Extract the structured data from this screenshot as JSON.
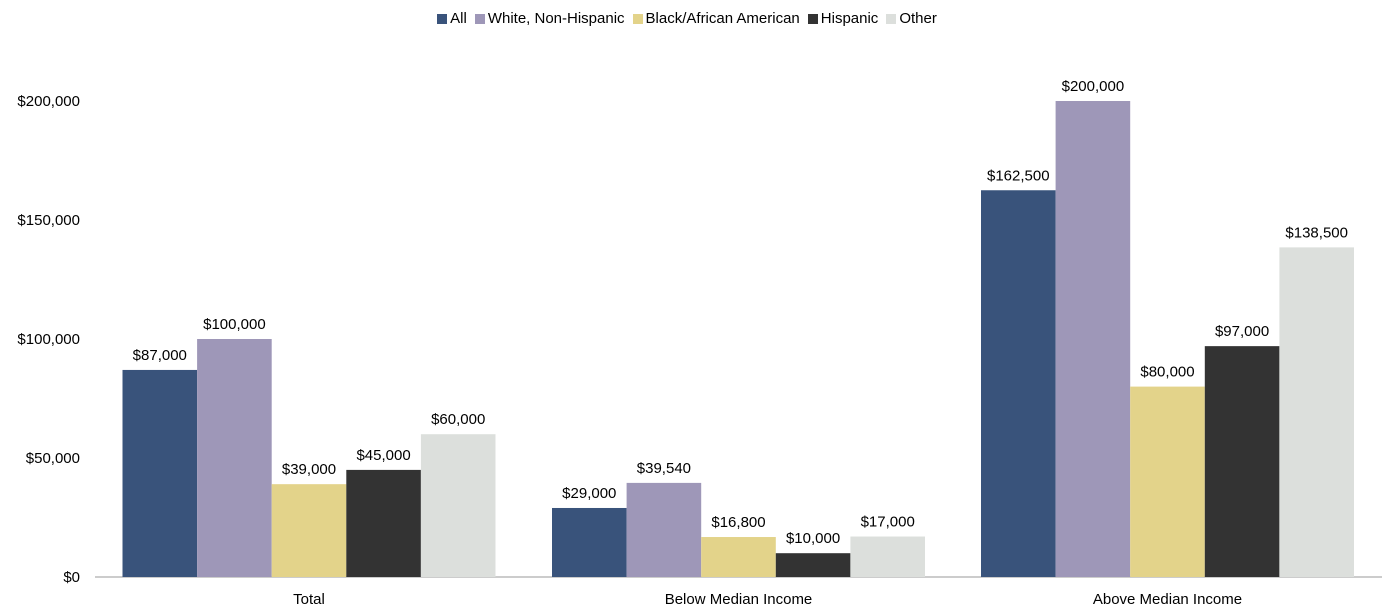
{
  "chart_data": {
    "type": "bar",
    "title": "",
    "xlabel": "",
    "ylabel": "",
    "categories": [
      "Total",
      "Below Median Income",
      "Above Median Income"
    ],
    "series": [
      {
        "name": "All",
        "color": "#39537b",
        "values": [
          87000,
          29000,
          162500
        ],
        "labels": [
          "$87,000",
          "$29,000",
          "$162,500"
        ]
      },
      {
        "name": "White, Non-Hispanic",
        "color": "#9e97b8",
        "values": [
          100000,
          39540,
          200000
        ],
        "labels": [
          "$100,000",
          "$39,540",
          "$200,000"
        ]
      },
      {
        "name": "Black/African American",
        "color": "#e3d38a",
        "values": [
          39000,
          16800,
          80000
        ],
        "labels": [
          "$39,000",
          "$16,800",
          "$80,000"
        ]
      },
      {
        "name": "Hispanic",
        "color": "#333333",
        "values": [
          45000,
          10000,
          97000
        ],
        "labels": [
          "$45,000",
          "$10,000",
          "$97,000"
        ]
      },
      {
        "name": "Other",
        "color": "#dcdfdc",
        "values": [
          60000,
          17000,
          138500
        ],
        "labels": [
          "$60,000",
          "$17,000",
          "$138,500"
        ]
      }
    ],
    "yticks": [
      0,
      50000,
      100000,
      150000,
      200000
    ],
    "ytick_labels": [
      "$0",
      "$50,000",
      "$100,000",
      "$150,000",
      "$200,000"
    ],
    "ylim": [
      0,
      200000
    ],
    "grid": false,
    "legend_position": "top-center"
  }
}
